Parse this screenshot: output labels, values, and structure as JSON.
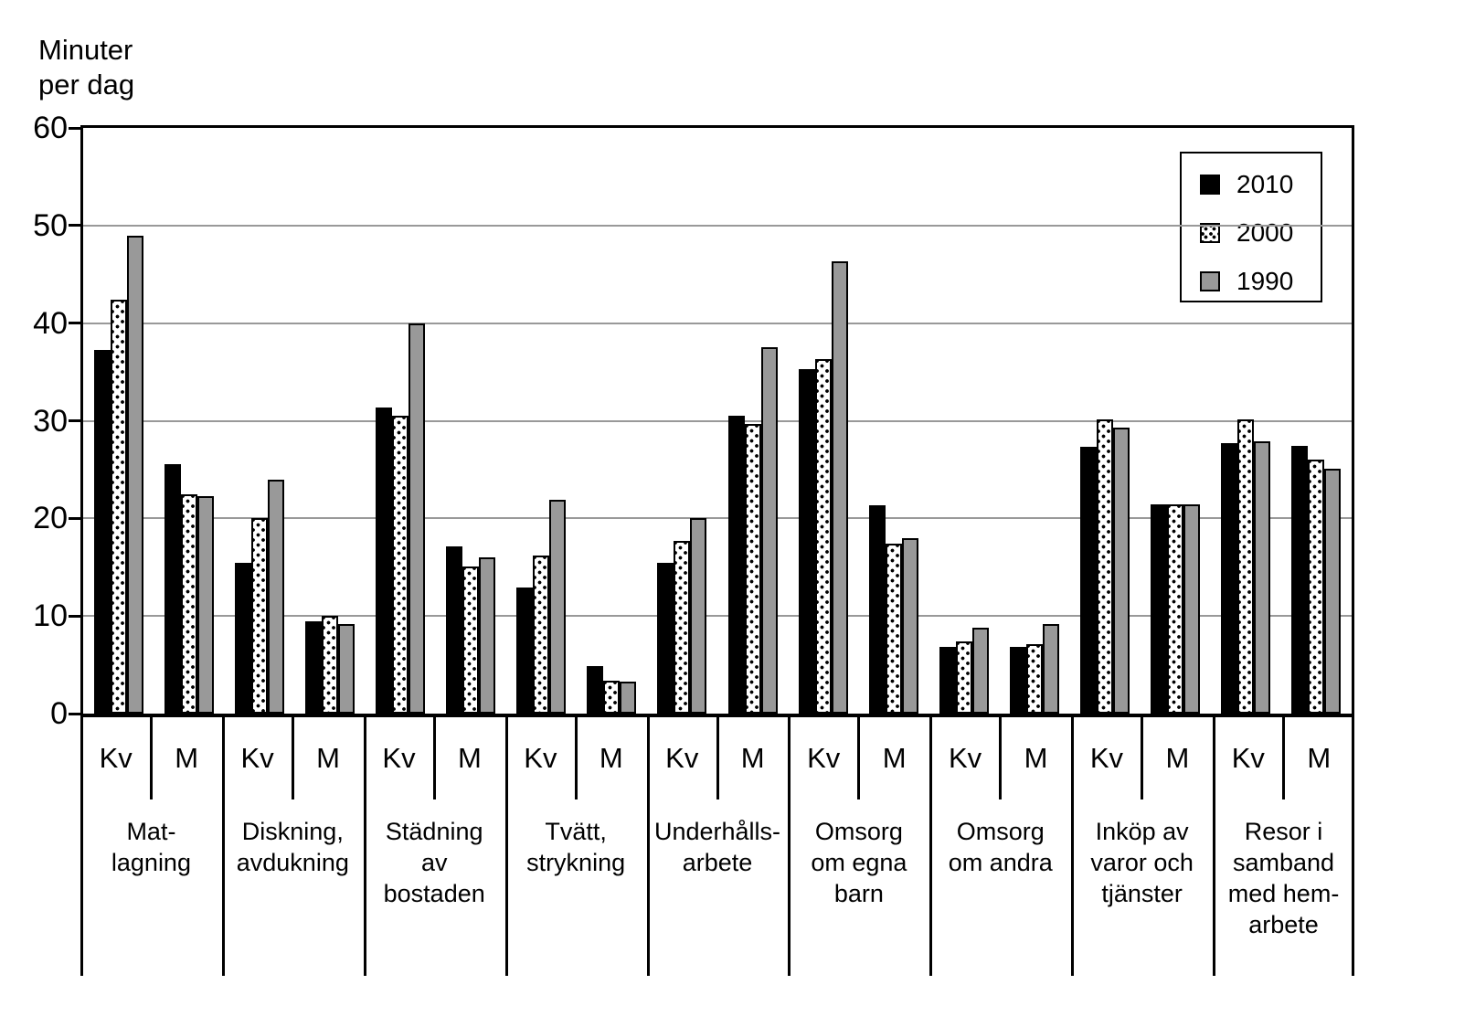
{
  "chart_data": {
    "type": "bar",
    "title": "Minuter\nper dag",
    "y_axis": {
      "min": 0,
      "max": 60,
      "tick_step": 10,
      "ticks": [
        60,
        50,
        40,
        30,
        20,
        10,
        0
      ],
      "grid": true
    },
    "legend_position": "top-right",
    "series": [
      {
        "name": "2010",
        "style": "black"
      },
      {
        "name": "2000",
        "style": "dotted"
      },
      {
        "name": "1990",
        "style": "gray"
      }
    ],
    "subgroup_labels": [
      "Kv",
      "M"
    ],
    "groups": [
      {
        "label": "Mat-\nlagning",
        "kv": [
          37.3,
          42.4,
          49.0
        ],
        "m": [
          25.6,
          22.5,
          22.3
        ]
      },
      {
        "label": "Diskning,\navdukning",
        "kv": [
          15.4,
          20.0,
          24.0
        ],
        "m": [
          9.5,
          10.0,
          9.2
        ]
      },
      {
        "label": "Städning\nav bostaden",
        "kv": [
          31.4,
          30.5,
          40.0
        ],
        "m": [
          17.1,
          15.1,
          16.0
        ]
      },
      {
        "label": "Tvätt,\nstrykning",
        "kv": [
          12.9,
          16.2,
          21.9
        ],
        "m": [
          4.9,
          3.4,
          3.3
        ]
      },
      {
        "label": "Underhålls-\narbete",
        "kv": [
          15.4,
          17.7,
          20.0
        ],
        "m": [
          30.5,
          29.7,
          37.5
        ]
      },
      {
        "label": "Omsorg\nom egna\nbarn",
        "kv": [
          35.3,
          36.3,
          46.3
        ],
        "m": [
          21.3,
          17.4,
          18.0
        ]
      },
      {
        "label": "Omsorg\nom andra",
        "kv": [
          6.8,
          7.4,
          8.8
        ],
        "m": [
          6.8,
          7.1,
          9.2
        ]
      },
      {
        "label": "Inköp av\nvaror och\ntjänster",
        "kv": [
          27.3,
          30.1,
          29.3
        ],
        "m": [
          21.4,
          21.4,
          21.4
        ]
      },
      {
        "label": "Resor i\nsamband\nmed hem-\narbete",
        "kv": [
          27.7,
          30.1,
          27.9
        ],
        "m": [
          27.4,
          26.0,
          25.1
        ]
      }
    ],
    "colors": {
      "bar_2010": "#000000",
      "bar_2000_bg": "#ffffff",
      "bar_1990": "#999999",
      "gridline": "#999999",
      "axis": "#000000"
    }
  }
}
